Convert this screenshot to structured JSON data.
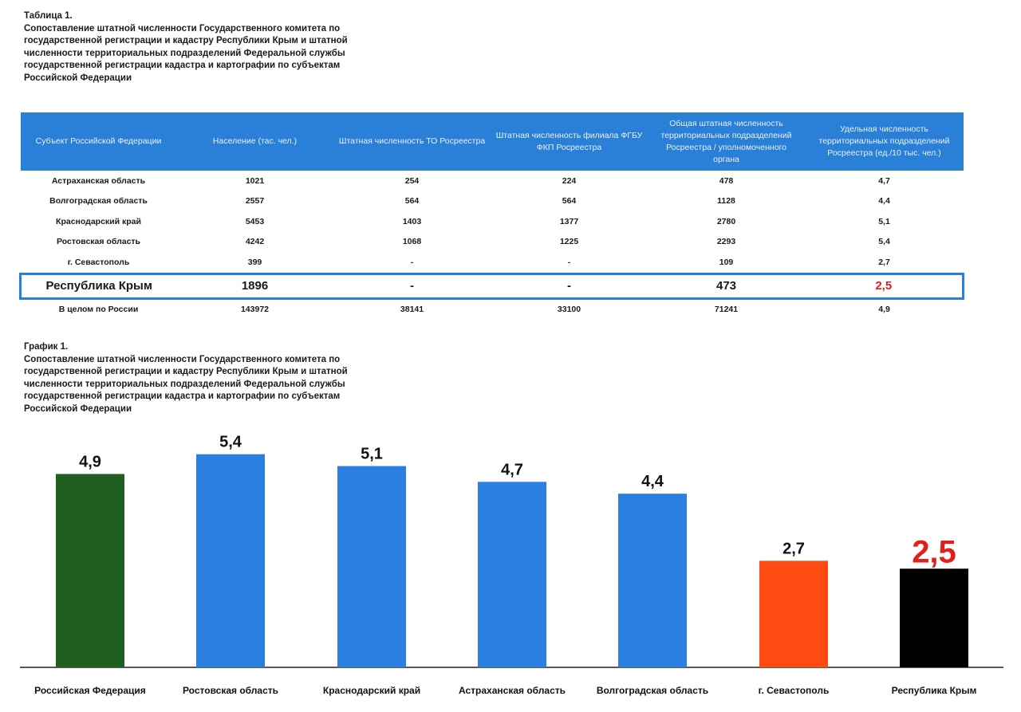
{
  "table_caption": {
    "number": "Таблица 1.",
    "text": "Сопоставление штатной численности Государственного комитета по государственной регистрации и кадастру Республики Крым и штатной численности территориальных подразделений Федеральной службы государственной регистрации кадастра и картографии по субъектам Российской Федерации"
  },
  "table": {
    "headers": [
      "Субъект Российской Федерации",
      "Население (тас. чел.)",
      "Штатная численность ТО Росреестра",
      "Штатная численность филиала ФГБУ ФКП Росреестра",
      "Общая штатная численность территориальных подразделений Росреестра / уполномоченного органа",
      "Удельная численность территориальных подразделений Росреестра (ед./10 тыс. чел.)"
    ],
    "rows": [
      [
        "Астраханская область",
        "1021",
        "254",
        "224",
        "478",
        "4,7"
      ],
      [
        "Волгоградская область",
        "2557",
        "564",
        "564",
        "1128",
        "4,4"
      ],
      [
        "Краснодарский край",
        "5453",
        "1403",
        "1377",
        "2780",
        "5,1"
      ],
      [
        "Ростовская область",
        "4242",
        "1068",
        "1225",
        "2293",
        "5,4"
      ],
      [
        "г. Севастополь",
        "399",
        "-",
        "-",
        "109",
        "2,7"
      ],
      [
        "Республика Крым",
        "1896",
        "-",
        "-",
        "473",
        "2,5"
      ],
      [
        "В целом по России",
        "143972",
        "38141",
        "33100",
        "71241",
        "4,9"
      ]
    ],
    "highlight_row": 5,
    "highlight_color": "#2a7fd6",
    "header_color": "#2a7fd6"
  },
  "chart_caption": {
    "number": "График 1.",
    "text": "Сопоставление штатной численности Государственного комитета по государственной регистрации и кадастру Республики Крым и штатной численности территориальных подразделений Федеральной службы государственной регистрации кадастра и картографии по субъектам Российской Федерации"
  },
  "chart_data": {
    "type": "bar",
    "title": "",
    "xlabel": "",
    "ylabel": "",
    "ylim": [
      0,
      6
    ],
    "grid": false,
    "categories": [
      "Российская Федерация",
      "Ростовская область",
      "Краснодарский край",
      "Астраханская область",
      "Волгоградская область",
      "г. Севастополь",
      "Республика Крым"
    ],
    "values": [
      4.9,
      5.4,
      5.1,
      4.7,
      4.4,
      2.7,
      2.5
    ],
    "value_labels": [
      "4,9",
      "5,4",
      "5,1",
      "4,7",
      "4,4",
      "2,7",
      "2,5"
    ],
    "colors": [
      "#1f5f1f",
      "#2a7fe0",
      "#2a7fe0",
      "#2a7fe0",
      "#2a7fe0",
      "#ff4a12",
      "#000000"
    ],
    "label_colors": [
      "#111111",
      "#111111",
      "#111111",
      "#111111",
      "#111111",
      "#111111",
      "#e0201b"
    ]
  }
}
